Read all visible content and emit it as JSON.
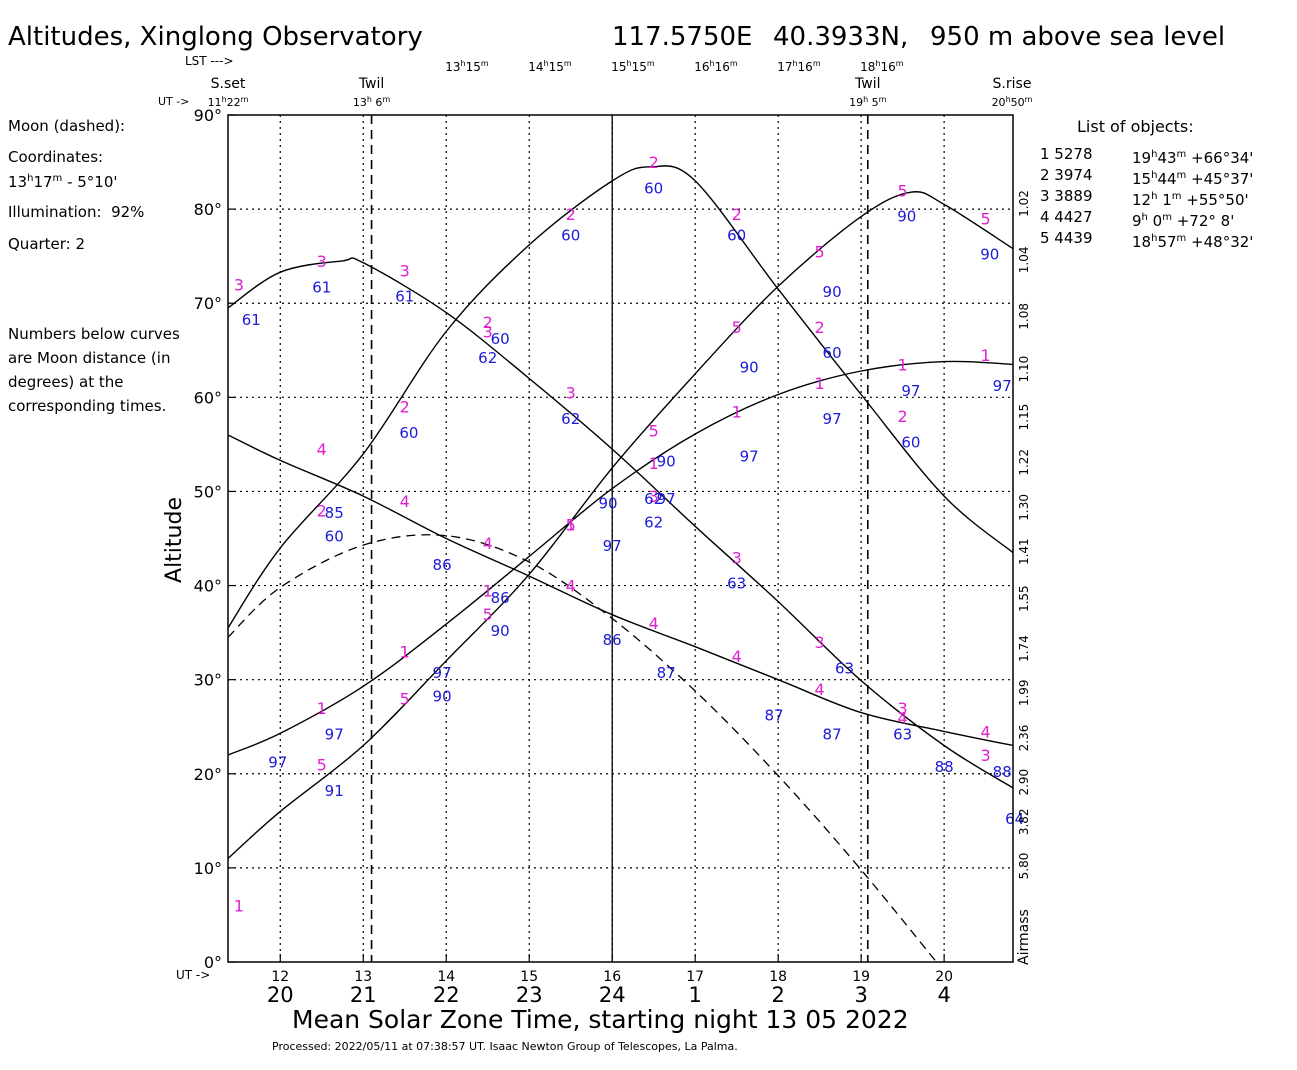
{
  "header": {
    "title": "Altitudes, Xinglong Observatory",
    "longitude": "117.5750E",
    "latitude": "40.3933N,",
    "elevation": "950 m above sea level"
  },
  "top_axis": {
    "lst_arrow": "LST --->",
    "ut_arrow": "UT ->",
    "lst_ticks": [
      {
        "h": "13",
        "m": "15",
        "x": 14.25
      },
      {
        "h": "14",
        "m": "15",
        "x": 15.25
      },
      {
        "h": "15",
        "m": "15",
        "x": 16.25
      },
      {
        "h": "16",
        "m": "16",
        "x": 17.25
      },
      {
        "h": "17",
        "m": "16",
        "x": 18.25
      },
      {
        "h": "18",
        "m": "16",
        "x": 19.25
      }
    ],
    "events": [
      {
        "name": "S.set",
        "h": "11",
        "m": "22",
        "x": 11.37
      },
      {
        "name": "Twil",
        "h": "13",
        "m": " 6",
        "x": 13.1
      },
      {
        "name": "Twil",
        "h": "19",
        "m": " 5",
        "x": 19.08
      },
      {
        "name": "S.rise",
        "h": "20",
        "m": "50",
        "x": 20.83
      }
    ]
  },
  "moon": {
    "label": "Moon (dashed):",
    "coords_label": "Coordinates:",
    "ra_h": "13",
    "ra_m": "17",
    "dec": " - 5°10'",
    "illumination_label": "Illumination:",
    "illumination": "92%",
    "quarter_label": "Quarter:",
    "quarter": "2"
  },
  "note": "Numbers below curves are Moon distance (in degrees) at the corresponding times.",
  "objects_title": "List of objects:",
  "objects": [
    {
      "n": "1",
      "id": "5278",
      "ra_h": "19",
      "ra_m": "43",
      "dec": "+66°34'"
    },
    {
      "n": "2",
      "id": "3974",
      "ra_h": "15",
      "ra_m": "44",
      "dec": "+45°37'"
    },
    {
      "n": "3",
      "id": "3889",
      "ra_h": "12",
      "ra_m": " 1",
      "dec": "+55°50'"
    },
    {
      "n": "4",
      "id": "4427",
      "ra_h": "9",
      "ra_m": " 0",
      "dec": "+72° 8'"
    },
    {
      "n": "5",
      "id": "4439",
      "ra_h": "18",
      "ra_m": "57",
      "dec": "+48°32'"
    }
  ],
  "bottom": {
    "ut_arrow": "UT ->",
    "xlabel": "Mean Solar Zone Time, starting night 13 05 2022",
    "footer": "Processed: 2022/05/11 at 07:38:57 UT. Isaac  Newton Group of Telescopes, La Palma."
  },
  "colors": {
    "object_label": "#e020d0",
    "moon_distance": "#1a1ad8",
    "curve": "#000000"
  },
  "chart_data": {
    "type": "line",
    "xlim": [
      11.37,
      20.83
    ],
    "ylim": [
      0,
      90
    ],
    "ylabel": "Altitude",
    "y_ticks": [
      "0°",
      "10°",
      "20°",
      "30°",
      "40°",
      "50°",
      "60°",
      "70°",
      "80°",
      "90°"
    ],
    "ut_ticks": [
      12,
      13,
      14,
      15,
      16,
      17,
      18,
      19,
      20
    ],
    "local_ticks": [
      {
        "x": 12,
        "label": "20"
      },
      {
        "x": 13,
        "label": "21"
      },
      {
        "x": 14,
        "label": "22"
      },
      {
        "x": 15,
        "label": "23"
      },
      {
        "x": 16,
        "label": "24"
      },
      {
        "x": 17,
        "label": "1"
      },
      {
        "x": 18,
        "label": "2"
      },
      {
        "x": 19,
        "label": "3"
      },
      {
        "x": 20,
        "label": "4"
      }
    ],
    "midnight_x": 16,
    "twilight_x": [
      13.1,
      19.08
    ],
    "airmass_title": "Airmass",
    "airmass": [
      {
        "alt": 80.6,
        "label": "1.02"
      },
      {
        "alt": 74.6,
        "label": "1.04"
      },
      {
        "alt": 68.6,
        "label": "1.08"
      },
      {
        "alt": 63.0,
        "label": "1.10"
      },
      {
        "alt": 57.9,
        "label": "1.15"
      },
      {
        "alt": 53.1,
        "label": "1.22"
      },
      {
        "alt": 48.3,
        "label": "1.30"
      },
      {
        "alt": 43.6,
        "label": "1.41"
      },
      {
        "alt": 38.6,
        "label": "1.55"
      },
      {
        "alt": 33.3,
        "label": "1.74"
      },
      {
        "alt": 28.6,
        "label": "1.99"
      },
      {
        "alt": 23.8,
        "label": "2.36"
      },
      {
        "alt": 19.1,
        "label": "2.90"
      },
      {
        "alt": 14.9,
        "label": "3.82"
      },
      {
        "alt": 10.2,
        "label": "5.80"
      }
    ],
    "series": [
      {
        "name": "1",
        "x": [
          11.37,
          12,
          13,
          14,
          15,
          16,
          17,
          18,
          19,
          20,
          20.83
        ],
        "y": [
          22,
          24.3,
          29.3,
          35.9,
          43.1,
          50.3,
          56.1,
          60.3,
          62.8,
          63.8,
          63.5
        ]
      },
      {
        "name": "2",
        "x": [
          11.37,
          12,
          13,
          14,
          15,
          16,
          16.47,
          17,
          18,
          19,
          20,
          20.83
        ],
        "y": [
          35.5,
          44,
          54,
          67,
          76.2,
          83,
          84.5,
          83,
          71.5,
          60.3,
          49.5,
          43.5
        ]
      },
      {
        "name": "3",
        "x": [
          11.37,
          12,
          12.75,
          13,
          14,
          15,
          16,
          17,
          18,
          19,
          20,
          20.83
        ],
        "y": [
          69.5,
          73.3,
          74.5,
          74.3,
          69,
          62,
          54.5,
          46.3,
          38.3,
          29.9,
          23,
          18.5
        ]
      },
      {
        "name": "4",
        "x": [
          11.37,
          12,
          13,
          14,
          15,
          16,
          17,
          18,
          19,
          20,
          20.83
        ],
        "y": [
          56,
          53.3,
          49.5,
          45,
          41,
          36.9,
          33.5,
          30,
          26.5,
          24.5,
          23
        ]
      },
      {
        "name": "5",
        "x": [
          11.37,
          12,
          13,
          14,
          15,
          16,
          17,
          18,
          19,
          19.6,
          20,
          20.83
        ],
        "y": [
          11,
          16,
          23,
          32,
          41.2,
          52.5,
          62.5,
          71.8,
          79.2,
          81.8,
          80.5,
          75.8
        ]
      }
    ],
    "moon": {
      "x": [
        11.37,
        12,
        13,
        14,
        15,
        16,
        17,
        18,
        19,
        20,
        20.2
      ],
      "y": [
        34.5,
        39.8,
        44.3,
        45.3,
        42.5,
        36.5,
        28.8,
        19.8,
        9.8,
        -1,
        -3
      ]
    },
    "object_marks": [
      {
        "label": "3",
        "x": 11.5,
        "y": 72
      },
      {
        "label": "3",
        "x": 12.5,
        "y": 74.5
      },
      {
        "label": "3",
        "x": 13.5,
        "y": 73.5
      },
      {
        "label": "3",
        "x": 14.5,
        "y": 67
      },
      {
        "label": "3",
        "x": 15.5,
        "y": 60.5
      },
      {
        "label": "3",
        "x": 16.5,
        "y": 49.5
      },
      {
        "label": "3",
        "x": 17.5,
        "y": 43
      },
      {
        "label": "3",
        "x": 18.5,
        "y": 34
      },
      {
        "label": "3",
        "x": 19.5,
        "y": 27
      },
      {
        "label": "3",
        "x": 20.5,
        "y": 22
      },
      {
        "label": "2",
        "x": 12.5,
        "y": 48
      },
      {
        "label": "2",
        "x": 13.5,
        "y": 59
      },
      {
        "label": "2",
        "x": 14.5,
        "y": 68
      },
      {
        "label": "2",
        "x": 15.5,
        "y": 79.5
      },
      {
        "label": "2",
        "x": 16.5,
        "y": 85
      },
      {
        "label": "2",
        "x": 17.5,
        "y": 79.5
      },
      {
        "label": "2",
        "x": 18.5,
        "y": 67.5
      },
      {
        "label": "2",
        "x": 19.5,
        "y": 58
      },
      {
        "label": "4",
        "x": 12.5,
        "y": 54.5
      },
      {
        "label": "4",
        "x": 13.5,
        "y": 49
      },
      {
        "label": "4",
        "x": 14.5,
        "y": 44.5
      },
      {
        "label": "4",
        "x": 15.5,
        "y": 40
      },
      {
        "label": "4",
        "x": 16.5,
        "y": 36
      },
      {
        "label": "4",
        "x": 17.5,
        "y": 32.5
      },
      {
        "label": "4",
        "x": 18.5,
        "y": 29
      },
      {
        "label": "4",
        "x": 19.5,
        "y": 26
      },
      {
        "label": "4",
        "x": 20.5,
        "y": 24.5
      },
      {
        "label": "1",
        "x": 12.5,
        "y": 27
      },
      {
        "label": "1",
        "x": 13.5,
        "y": 33
      },
      {
        "label": "1",
        "x": 14.5,
        "y": 39.5
      },
      {
        "label": "1",
        "x": 15.5,
        "y": 46.5
      },
      {
        "label": "1",
        "x": 16.5,
        "y": 53
      },
      {
        "label": "1",
        "x": 17.5,
        "y": 58.5
      },
      {
        "label": "1",
        "x": 18.5,
        "y": 61.5
      },
      {
        "label": "1",
        "x": 19.5,
        "y": 63.5
      },
      {
        "label": "1",
        "x": 20.5,
        "y": 64.5
      },
      {
        "label": "1",
        "x": 11.5,
        "y": 6
      },
      {
        "label": "5",
        "x": 12.5,
        "y": 21
      },
      {
        "label": "5",
        "x": 13.5,
        "y": 28
      },
      {
        "label": "5",
        "x": 14.5,
        "y": 37
      },
      {
        "label": "5",
        "x": 15.5,
        "y": 46.5
      },
      {
        "label": "5",
        "x": 16.5,
        "y": 56.5
      },
      {
        "label": "5",
        "x": 17.5,
        "y": 67.5
      },
      {
        "label": "5",
        "x": 18.5,
        "y": 75.5
      },
      {
        "label": "5",
        "x": 19.5,
        "y": 82
      },
      {
        "label": "5",
        "x": 20.5,
        "y": 79
      }
    ],
    "moon_distance_marks": [
      {
        "label": "61",
        "x": 11.65,
        "y": 68.3
      },
      {
        "label": "61",
        "x": 12.5,
        "y": 71.8
      },
      {
        "label": "61",
        "x": 13.5,
        "y": 70.8
      },
      {
        "label": "62",
        "x": 14.5,
        "y": 64.3
      },
      {
        "label": "62",
        "x": 15.5,
        "y": 57.8
      },
      {
        "label": "62",
        "x": 16.5,
        "y": 46.8
      },
      {
        "label": "63",
        "x": 17.5,
        "y": 40.3
      },
      {
        "label": "63",
        "x": 18.8,
        "y": 31.3
      },
      {
        "label": "63",
        "x": 19.5,
        "y": 24.3
      },
      {
        "label": "64",
        "x": 20.85,
        "y": 15.3
      },
      {
        "label": "60",
        "x": 12.65,
        "y": 45.3
      },
      {
        "label": "60",
        "x": 13.55,
        "y": 56.3
      },
      {
        "label": "60",
        "x": 14.65,
        "y": 66.3
      },
      {
        "label": "60",
        "x": 15.5,
        "y": 77.3
      },
      {
        "label": "60",
        "x": 16.5,
        "y": 82.3
      },
      {
        "label": "60",
        "x": 17.5,
        "y": 77.3
      },
      {
        "label": "60",
        "x": 18.65,
        "y": 64.8
      },
      {
        "label": "60",
        "x": 19.6,
        "y": 55.3
      },
      {
        "label": "85",
        "x": 12.65,
        "y": 47.8
      },
      {
        "label": "86",
        "x": 13.95,
        "y": 42.3
      },
      {
        "label": "86",
        "x": 14.65,
        "y": 38.8
      },
      {
        "label": "86",
        "x": 16,
        "y": 34.3
      },
      {
        "label": "87",
        "x": 16.65,
        "y": 30.8
      },
      {
        "label": "87",
        "x": 17.95,
        "y": 26.3
      },
      {
        "label": "87",
        "x": 18.65,
        "y": 24.3
      },
      {
        "label": "88",
        "x": 20,
        "y": 20.8
      },
      {
        "label": "88",
        "x": 20.7,
        "y": 20.3
      },
      {
        "label": "97",
        "x": 11.97,
        "y": 21.3
      },
      {
        "label": "97",
        "x": 12.65,
        "y": 24.3
      },
      {
        "label": "97",
        "x": 13.95,
        "y": 30.8
      },
      {
        "label": "97",
        "x": 16,
        "y": 44.3
      },
      {
        "label": "97",
        "x": 16.65,
        "y": 49.3
      },
      {
        "label": "97",
        "x": 17.65,
        "y": 53.8
      },
      {
        "label": "97",
        "x": 18.65,
        "y": 57.8
      },
      {
        "label": "97",
        "x": 19.6,
        "y": 60.8
      },
      {
        "label": "97",
        "x": 20.7,
        "y": 61.3
      },
      {
        "label": "91",
        "x": 12.65,
        "y": 18.3
      },
      {
        "label": "90",
        "x": 13.95,
        "y": 28.3
      },
      {
        "label": "90",
        "x": 14.65,
        "y": 35.3
      },
      {
        "label": "90",
        "x": 15.95,
        "y": 48.8
      },
      {
        "label": "90",
        "x": 16.65,
        "y": 53.3
      },
      {
        "label": "90",
        "x": 17.65,
        "y": 63.3
      },
      {
        "label": "90",
        "x": 18.65,
        "y": 71.3
      },
      {
        "label": "90",
        "x": 19.55,
        "y": 79.3
      },
      {
        "label": "90",
        "x": 20.55,
        "y": 75.3
      },
      {
        "label": "62",
        "x": 16.5,
        "y": 49.3
      }
    ]
  }
}
